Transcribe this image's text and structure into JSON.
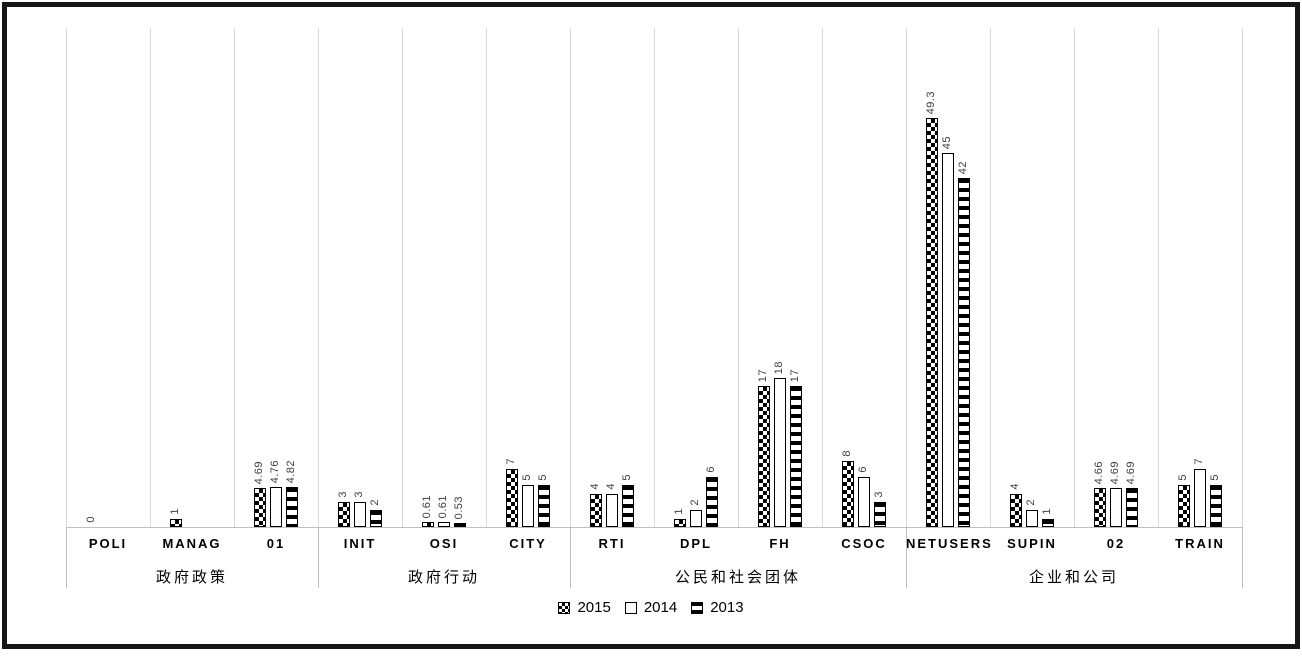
{
  "chart_data": {
    "type": "bar",
    "title": "",
    "categories": [
      "POLI",
      "MANAG",
      "01",
      "INIT",
      "OSI",
      "CITY",
      "RTI",
      "DPL",
      "FH",
      "CSOC",
      "NETUSERS",
      "SUPIN",
      "02",
      "TRAIN"
    ],
    "groups": [
      {
        "label": "政府政策",
        "start": 0,
        "end": 2
      },
      {
        "label": "政府行动",
        "start": 3,
        "end": 5
      },
      {
        "label": "公民和社会团体",
        "start": 6,
        "end": 9
      },
      {
        "label": "企业和公司",
        "start": 10,
        "end": 13
      }
    ],
    "series": [
      {
        "name": "2015",
        "pattern": "2015",
        "values": [
          0,
          1,
          4.69,
          3,
          0.61,
          7,
          4,
          1,
          17,
          8,
          49.3,
          4,
          4.66,
          5
        ]
      },
      {
        "name": "2014",
        "pattern": "2014",
        "values": [
          null,
          null,
          4.76,
          3,
          0.61,
          5,
          4,
          2,
          18,
          6,
          45,
          2,
          4.69,
          7
        ]
      },
      {
        "name": "2013",
        "pattern": "2013",
        "values": [
          null,
          null,
          4.82,
          2,
          0.53,
          5,
          5,
          6,
          17,
          3,
          42,
          1,
          4.69,
          5
        ]
      }
    ],
    "ylim": [
      0,
      60
    ],
    "xlabel": "",
    "ylabel": "",
    "grid": "vertical category separators only",
    "value_labels": "rotated 90deg above each bar",
    "legend_position": "bottom-center"
  },
  "colors": {
    "frame_border": "#161616",
    "gridline": "#d9d9d9",
    "axis_line": "#bfbfbf",
    "bar_border": "#000000",
    "bar_fill_2014": "#ffffff",
    "pattern_ink": "#000000",
    "value_label_text": "#3f3f3f",
    "label_text": "#000000"
  }
}
